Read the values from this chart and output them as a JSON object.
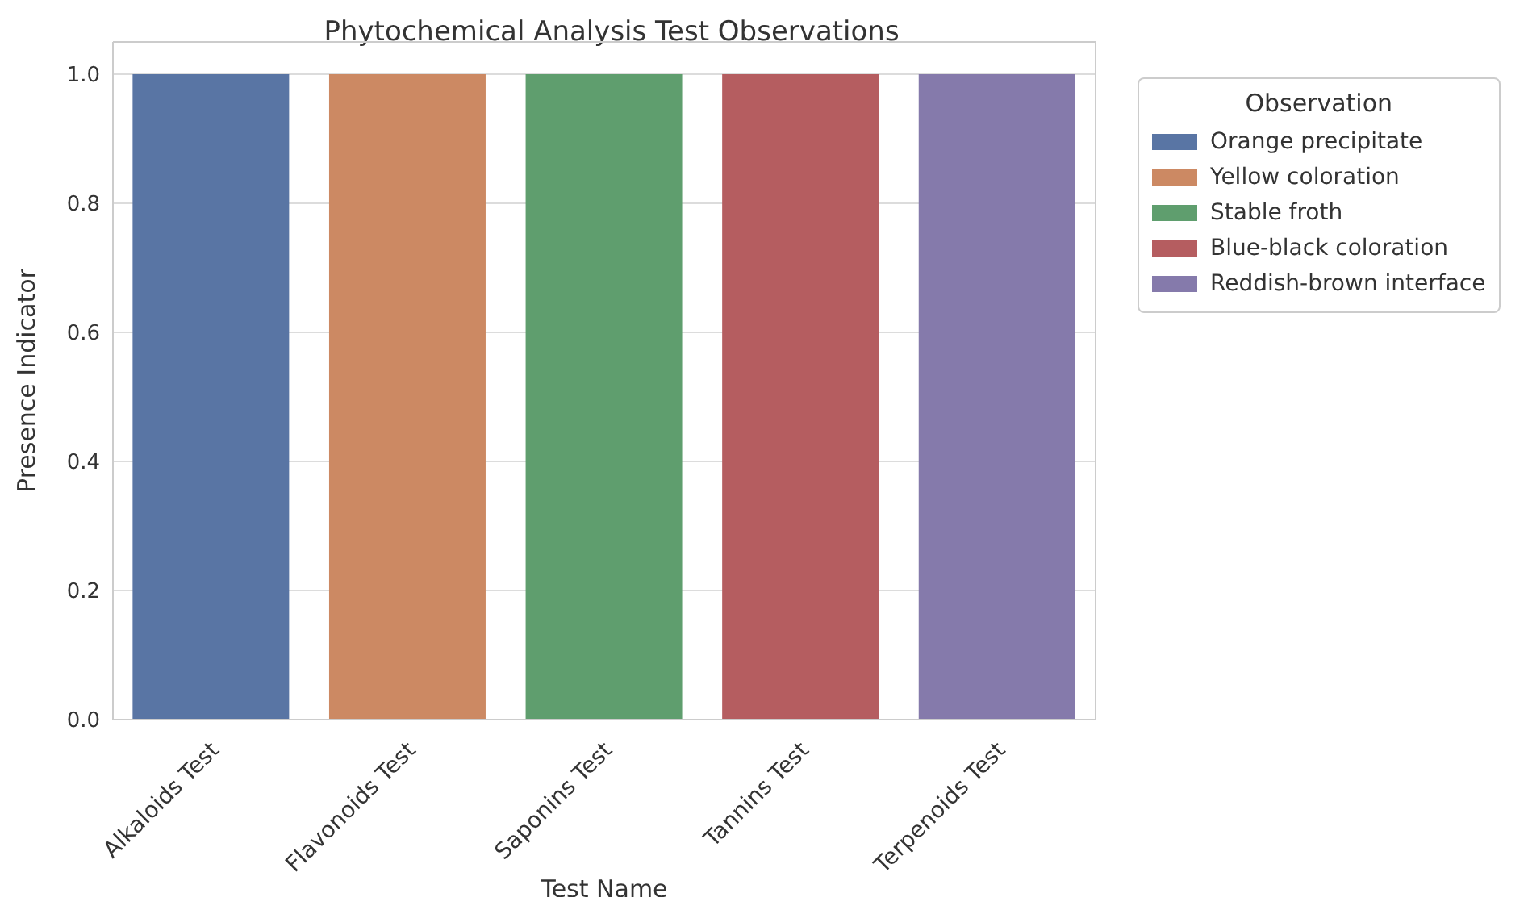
{
  "chart_data": {
    "type": "bar",
    "title": "Phytochemical Analysis Test Observations",
    "xlabel": "Test Name",
    "ylabel": "Presence Indicator",
    "legend_title": "Observation",
    "categories": [
      "Alkaloids Test",
      "Flavonoids Test",
      "Saponins Test",
      "Tannins Test",
      "Terpenoids Test"
    ],
    "series": [
      {
        "name": "Orange precipitate",
        "color": "#5975a4",
        "values": [
          1,
          null,
          null,
          null,
          null
        ]
      },
      {
        "name": "Yellow coloration",
        "color": "#cc8963",
        "values": [
          null,
          1,
          null,
          null,
          null
        ]
      },
      {
        "name": "Stable froth",
        "color": "#5f9e6e",
        "values": [
          null,
          null,
          1,
          null,
          null
        ]
      },
      {
        "name": "Blue-black coloration",
        "color": "#b55d60",
        "values": [
          null,
          null,
          null,
          1,
          null
        ]
      },
      {
        "name": "Reddish-brown interface",
        "color": "#857aab",
        "values": [
          null,
          null,
          null,
          null,
          1
        ]
      }
    ],
    "ylim": [
      0,
      1.05
    ],
    "yticks": [
      {
        "value": 0,
        "label": "0.0"
      },
      0.2,
      0.4,
      0.6,
      0.8,
      {
        "value": 1,
        "label": "1.0"
      }
    ],
    "grid": "y",
    "legend": "right"
  }
}
